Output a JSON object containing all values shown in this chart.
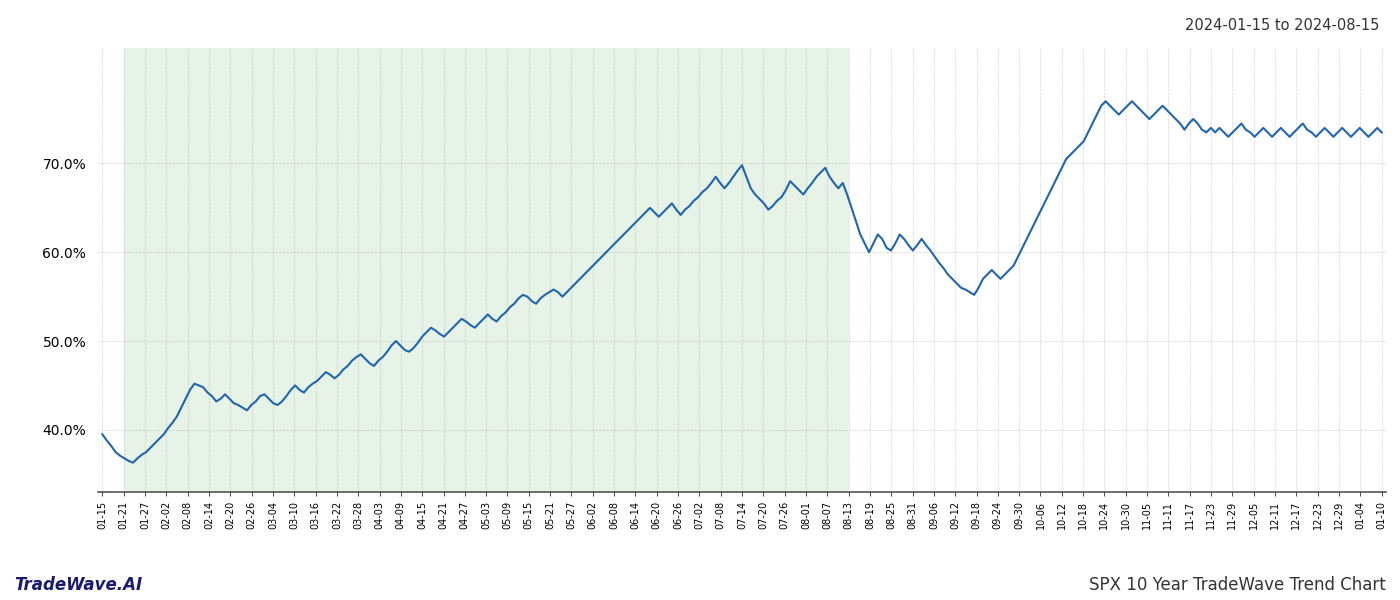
{
  "title_top_right": "2024-01-15 to 2024-08-15",
  "footer_left": "TradeWave.AI",
  "footer_right": "SPX 10 Year TradeWave Trend Chart",
  "line_color": "#2166ac",
  "shade_color": "#c8e6c9",
  "shade_alpha": 0.45,
  "background_color": "#ffffff",
  "grid_color": "#aaaaaa",
  "grid_alpha": 0.5,
  "figsize": [
    14.0,
    6.0
  ],
  "dpi": 100,
  "ylim": [
    33.0,
    83.0
  ],
  "yticks": [
    40.0,
    50.0,
    60.0,
    70.0
  ],
  "line_width": 1.5,
  "x_tick_labels": [
    "01-15",
    "01-21",
    "01-27",
    "02-02",
    "02-08",
    "02-14",
    "02-20",
    "02-26",
    "03-04",
    "03-10",
    "03-16",
    "03-22",
    "03-28",
    "04-03",
    "04-09",
    "04-15",
    "04-21",
    "04-27",
    "05-03",
    "05-09",
    "05-15",
    "05-21",
    "05-27",
    "06-02",
    "06-08",
    "06-14",
    "06-20",
    "06-26",
    "07-02",
    "07-08",
    "07-14",
    "07-20",
    "07-26",
    "08-01",
    "08-07",
    "08-13",
    "08-19",
    "08-25",
    "08-31",
    "09-06",
    "09-12",
    "09-18",
    "09-24",
    "09-30",
    "10-06",
    "10-12",
    "10-18",
    "10-24",
    "10-30",
    "11-05",
    "11-11",
    "11-17",
    "11-23",
    "11-29",
    "12-05",
    "12-11",
    "12-17",
    "12-23",
    "12-29",
    "01-04",
    "01-10"
  ],
  "shade_start_label": "01-21",
  "shade_end_label": "08-13",
  "y_values": [
    39.5,
    38.8,
    38.2,
    37.5,
    37.1,
    36.8,
    36.5,
    36.3,
    36.8,
    37.2,
    37.5,
    38.0,
    38.5,
    39.0,
    39.5,
    40.2,
    40.8,
    41.5,
    42.5,
    43.5,
    44.5,
    45.2,
    45.0,
    44.8,
    44.2,
    43.8,
    43.2,
    43.5,
    44.0,
    43.5,
    43.0,
    42.8,
    42.5,
    42.2,
    42.8,
    43.2,
    43.8,
    44.0,
    43.5,
    43.0,
    42.8,
    43.2,
    43.8,
    44.5,
    45.0,
    44.5,
    44.2,
    44.8,
    45.2,
    45.5,
    46.0,
    46.5,
    46.2,
    45.8,
    46.2,
    46.8,
    47.2,
    47.8,
    48.2,
    48.5,
    48.0,
    47.5,
    47.2,
    47.8,
    48.2,
    48.8,
    49.5,
    50.0,
    49.5,
    49.0,
    48.8,
    49.2,
    49.8,
    50.5,
    51.0,
    51.5,
    51.2,
    50.8,
    50.5,
    51.0,
    51.5,
    52.0,
    52.5,
    52.2,
    51.8,
    51.5,
    52.0,
    52.5,
    53.0,
    52.5,
    52.2,
    52.8,
    53.2,
    53.8,
    54.2,
    54.8,
    55.2,
    55.0,
    54.5,
    54.2,
    54.8,
    55.2,
    55.5,
    55.8,
    55.5,
    55.0,
    55.5,
    56.0,
    56.5,
    57.0,
    57.5,
    58.0,
    58.5,
    59.0,
    59.5,
    60.0,
    60.5,
    61.0,
    61.5,
    62.0,
    62.5,
    63.0,
    63.5,
    64.0,
    64.5,
    65.0,
    64.5,
    64.0,
    64.5,
    65.0,
    65.5,
    64.8,
    64.2,
    64.8,
    65.2,
    65.8,
    66.2,
    66.8,
    67.2,
    67.8,
    68.5,
    67.8,
    67.2,
    67.8,
    68.5,
    69.2,
    69.8,
    68.5,
    67.2,
    66.5,
    66.0,
    65.5,
    64.8,
    65.2,
    65.8,
    66.2,
    67.0,
    68.0,
    67.5,
    67.0,
    66.5,
    67.2,
    67.8,
    68.5,
    69.0,
    69.5,
    68.5,
    67.8,
    67.2,
    67.8,
    66.5,
    65.0,
    63.5,
    62.0,
    61.0,
    60.0,
    61.0,
    62.0,
    61.5,
    60.5,
    60.2,
    61.0,
    62.0,
    61.5,
    60.8,
    60.2,
    60.8,
    61.5,
    60.8,
    60.2,
    59.5,
    58.8,
    58.2,
    57.5,
    57.0,
    56.5,
    56.0,
    55.8,
    55.5,
    55.2,
    56.0,
    57.0,
    57.5,
    58.0,
    57.5,
    57.0,
    57.5,
    58.0,
    58.5,
    59.5,
    60.5,
    61.5,
    62.5,
    63.5,
    64.5,
    65.5,
    66.5,
    67.5,
    68.5,
    69.5,
    70.5,
    71.0,
    71.5,
    72.0,
    72.5,
    73.5,
    74.5,
    75.5,
    76.5,
    77.0,
    76.5,
    76.0,
    75.5,
    76.0,
    76.5,
    77.0,
    76.5,
    76.0,
    75.5,
    75.0,
    75.5,
    76.0,
    76.5,
    76.0,
    75.5,
    75.0,
    74.5,
    73.8,
    74.5,
    75.0,
    74.5,
    73.8,
    73.5,
    74.0,
    73.5,
    74.0,
    73.5,
    73.0,
    73.5,
    74.0,
    74.5,
    73.8,
    73.5,
    73.0,
    73.5,
    74.0,
    73.5,
    73.0,
    73.5,
    74.0,
    73.5,
    73.0,
    73.5,
    74.0,
    74.5,
    73.8,
    73.5,
    73.0,
    73.5,
    74.0,
    73.5,
    73.0,
    73.5,
    74.0,
    73.5,
    73.0,
    73.5,
    74.0,
    73.5,
    73.0,
    73.5,
    74.0,
    73.5
  ]
}
